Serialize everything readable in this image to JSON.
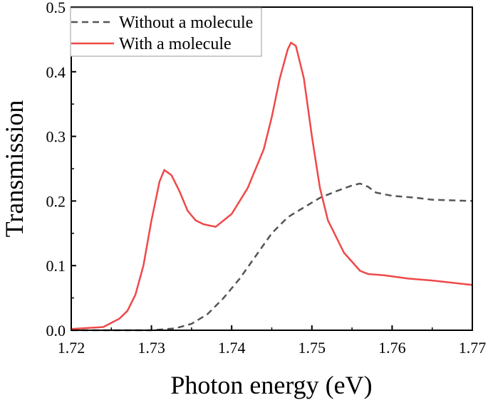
{
  "chart_data": {
    "type": "line",
    "title": "",
    "xlabel": "Photon energy (eV)",
    "ylabel": "Transmission",
    "xlim": [
      1.72,
      1.77
    ],
    "ylim": [
      0.0,
      0.5
    ],
    "xticks": [
      "1.72",
      "1.73",
      "1.74",
      "1.75",
      "1.76",
      "1.77"
    ],
    "yticks": [
      "0.0",
      "0.1",
      "0.2",
      "0.3",
      "0.4",
      "0.5"
    ],
    "legend_position": "top-left",
    "series": [
      {
        "name": "Without a molecule",
        "color": "#555555",
        "style": "dashed",
        "x": [
          1.72,
          1.725,
          1.73,
          1.733,
          1.735,
          1.737,
          1.739,
          1.741,
          1.743,
          1.745,
          1.747,
          1.749,
          1.751,
          1.753,
          1.755,
          1.756,
          1.757,
          1.758,
          1.76,
          1.763,
          1.765,
          1.77
        ],
        "y": [
          0.0,
          0.0,
          0.0,
          0.003,
          0.01,
          0.025,
          0.05,
          0.08,
          0.115,
          0.15,
          0.175,
          0.19,
          0.205,
          0.215,
          0.224,
          0.227,
          0.222,
          0.213,
          0.208,
          0.205,
          0.202,
          0.2
        ]
      },
      {
        "name": "With a molecule",
        "color": "#f04848",
        "style": "solid",
        "x": [
          1.72,
          1.724,
          1.726,
          1.727,
          1.728,
          1.729,
          1.73,
          1.731,
          1.7316,
          1.7325,
          1.7335,
          1.7345,
          1.7355,
          1.7365,
          1.738,
          1.74,
          1.742,
          1.744,
          1.745,
          1.746,
          1.747,
          1.7474,
          1.748,
          1.749,
          1.75,
          1.751,
          1.752,
          1.754,
          1.756,
          1.757,
          1.759,
          1.762,
          1.765,
          1.77
        ],
        "y": [
          0.002,
          0.005,
          0.018,
          0.03,
          0.055,
          0.1,
          0.17,
          0.23,
          0.248,
          0.24,
          0.215,
          0.185,
          0.17,
          0.164,
          0.16,
          0.18,
          0.22,
          0.28,
          0.33,
          0.39,
          0.435,
          0.445,
          0.44,
          0.39,
          0.3,
          0.22,
          0.17,
          0.12,
          0.092,
          0.087,
          0.085,
          0.08,
          0.077,
          0.07
        ]
      }
    ]
  }
}
